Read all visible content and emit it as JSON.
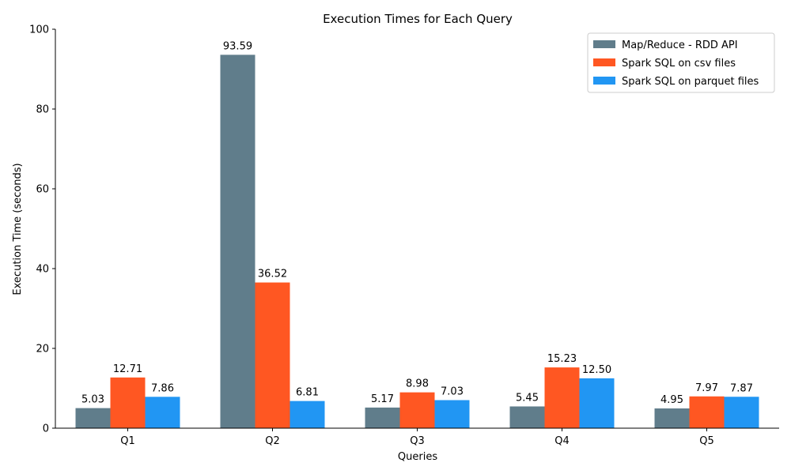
{
  "chart_data": {
    "type": "bar",
    "title": "Execution Times for Each Query",
    "xlabel": "Queries",
    "ylabel": "Execution Time (seconds)",
    "ylim": [
      0,
      100
    ],
    "yticks": [
      0,
      20,
      40,
      60,
      80,
      100
    ],
    "grid": false,
    "legend_position": "top-right",
    "categories": [
      "Q1",
      "Q2",
      "Q3",
      "Q4",
      "Q5"
    ],
    "series": [
      {
        "name": "Map/Reduce - RDD API",
        "color": "#607D8B",
        "values": [
          5.03,
          93.59,
          5.17,
          5.45,
          4.95
        ],
        "labels": [
          "5.03",
          "93.59",
          "5.17",
          "5.45",
          "4.95"
        ]
      },
      {
        "name": "Spark SQL on csv files",
        "color": "#FF5722",
        "values": [
          12.71,
          36.52,
          8.98,
          15.23,
          7.97
        ],
        "labels": [
          "12.71",
          "36.52",
          "8.98",
          "15.23",
          "7.97"
        ]
      },
      {
        "name": "Spark SQL on parquet files",
        "color": "#2196F3",
        "values": [
          7.86,
          6.81,
          7.03,
          12.5,
          7.87
        ],
        "labels": [
          "7.86",
          "6.81",
          "7.03",
          "12.50",
          "7.87"
        ]
      }
    ]
  }
}
